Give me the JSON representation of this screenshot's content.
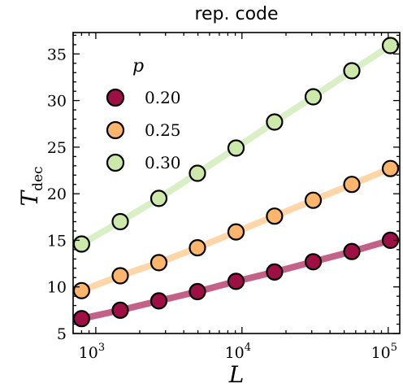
{
  "chart_data": {
    "type": "line",
    "title": "rep. code",
    "xlabel": "L",
    "ylabel": "T",
    "ylabel_sub": "dec",
    "x_scale": "log",
    "xlim": [
      700,
      120000
    ],
    "ylim": [
      5,
      37.3
    ],
    "x_ticks": [
      {
        "base": "10",
        "exp": "3",
        "value": 1000
      },
      {
        "base": "10",
        "exp": "4",
        "value": 10000
      },
      {
        "base": "10",
        "exp": "5",
        "value": 100000
      }
    ],
    "y_ticks": [
      "5",
      "10",
      "15",
      "20",
      "25",
      "30",
      "35"
    ],
    "legend": {
      "title": "p",
      "placement": "upper-left"
    },
    "x": [
      800,
      1470,
      2700,
      4960,
      9110,
      16700,
      30700,
      56400,
      103600
    ],
    "series": [
      {
        "name": "0.20",
        "fill": "#9e0f45",
        "line": "#c46189",
        "values": [
          6.6,
          7.5,
          8.5,
          9.5,
          10.6,
          11.6,
          12.7,
          13.8,
          15.0
        ]
      },
      {
        "name": "0.25",
        "fill": "#fdb46b",
        "line": "#fed6a8",
        "values": [
          9.6,
          11.2,
          12.6,
          14.2,
          15.9,
          17.6,
          19.3,
          21.0,
          22.7
        ]
      },
      {
        "name": "0.30",
        "fill": "#cce9a9",
        "line": "#d9efc6",
        "values": [
          14.6,
          17.0,
          19.5,
          22.2,
          24.9,
          27.7,
          30.4,
          33.2,
          35.9
        ]
      }
    ],
    "grid": false
  }
}
